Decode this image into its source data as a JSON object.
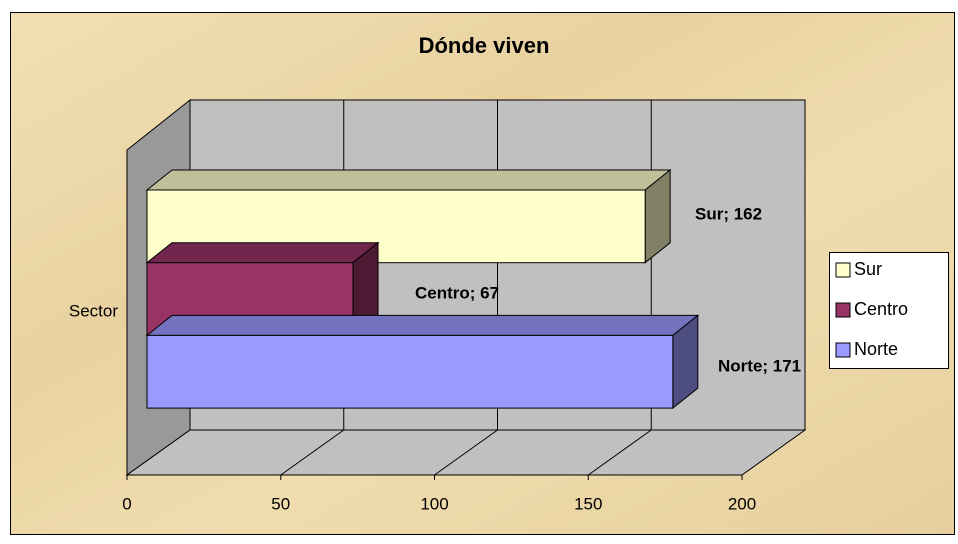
{
  "chart_data": {
    "type": "bar3d",
    "orientation": "horizontal",
    "title": "Dónde viven",
    "categories": [
      "Sector"
    ],
    "series": [
      {
        "name": "Sur",
        "color": "#ffffcc",
        "values": [
          162
        ],
        "value_labels": [
          "Sur; 162"
        ]
      },
      {
        "name": "Centro",
        "color": "#993366",
        "values": [
          67
        ],
        "value_labels": [
          "Centro; 67"
        ]
      },
      {
        "name": "Norte",
        "color": "#9999ff",
        "values": [
          171
        ],
        "value_labels": [
          "Norte; 171"
        ]
      }
    ],
    "xlim": [
      0,
      200
    ],
    "xticks": [
      0,
      50,
      100,
      150,
      200
    ],
    "grid": true,
    "legend": "right"
  }
}
